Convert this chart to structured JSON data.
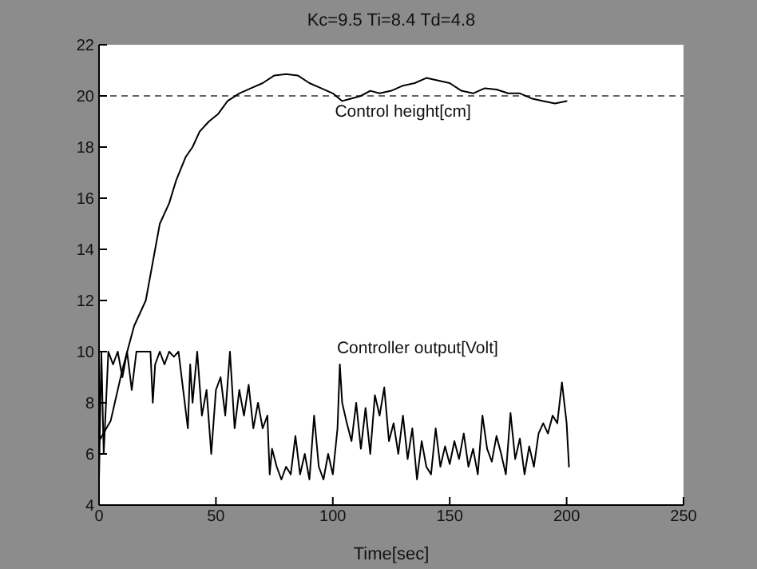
{
  "chart_data": {
    "type": "line",
    "title": "Kc=9.5   Ti=8.4   Td=4.8",
    "xlabel": "Time[sec]",
    "annotations": [
      "Control height[cm]",
      "Controller output[Volt]"
    ],
    "xlim": [
      0,
      250
    ],
    "xticks": [
      0,
      50,
      100,
      150,
      200,
      250
    ],
    "ylim": [
      4,
      22
    ],
    "yticks": [
      4,
      6,
      8,
      10,
      12,
      14,
      16,
      18,
      20,
      22
    ],
    "marker": "none",
    "line_style": "solid",
    "ref_lines": [
      {
        "axis": "y",
        "value": 20,
        "label": null,
        "color": "#333333",
        "line_style": "dashed"
      }
    ],
    "series": [
      {
        "color": "#000000",
        "x": [
          0,
          5,
          10,
          15,
          20,
          23,
          26,
          30,
          33,
          37,
          40,
          43,
          47,
          51,
          55,
          60,
          65,
          70,
          75,
          80,
          85,
          90,
          95,
          100,
          104,
          108,
          112,
          116,
          120,
          125,
          130,
          135,
          140,
          145,
          150,
          155,
          160,
          165,
          170,
          175,
          180,
          185,
          190,
          195,
          200
        ],
        "values": [
          6.5,
          7.3,
          9.3,
          11,
          12,
          13.5,
          15,
          15.8,
          16.7,
          17.6,
          18,
          18.6,
          19,
          19.3,
          19.8,
          20.1,
          20.3,
          20.5,
          20.8,
          20.85,
          20.8,
          20.5,
          20.3,
          20.1,
          19.8,
          19.9,
          20,
          20.2,
          20.1,
          20.2,
          20.4,
          20.5,
          20.7,
          20.6,
          20.5,
          20.2,
          20.1,
          20.3,
          20.25,
          20.1,
          20.1,
          19.9,
          19.8,
          19.7,
          19.8
        ]
      },
      {
        "color": "#000000",
        "x": [
          0,
          1,
          2,
          4,
          6,
          8,
          10,
          12,
          14,
          16,
          18,
          20,
          22,
          23,
          24,
          26,
          28,
          30,
          32,
          34,
          36,
          38,
          39,
          40,
          42,
          44,
          46,
          48,
          50,
          52,
          54,
          56,
          58,
          60,
          62,
          64,
          66,
          68,
          70,
          72,
          73,
          74,
          76,
          78,
          80,
          82,
          84,
          86,
          88,
          90,
          92,
          94,
          96,
          98,
          100,
          102,
          103,
          104,
          106,
          108,
          110,
          112,
          114,
          116,
          118,
          120,
          122,
          124,
          126,
          128,
          130,
          132,
          134,
          136,
          138,
          140,
          142,
          144,
          146,
          148,
          150,
          152,
          154,
          156,
          158,
          160,
          162,
          164,
          166,
          168,
          170,
          172,
          174,
          176,
          178,
          180,
          182,
          184,
          186,
          188,
          190,
          192,
          194,
          196,
          198,
          200,
          201
        ],
        "values": [
          5,
          10,
          6,
          10,
          9.5,
          10,
          9,
          10,
          8.5,
          10,
          10,
          10,
          10,
          8,
          9.5,
          10,
          9.5,
          10,
          9.8,
          10,
          8.5,
          7,
          9.5,
          8,
          10,
          7.5,
          8.5,
          6,
          8.5,
          9,
          7.5,
          10,
          7,
          8.5,
          7.5,
          8.7,
          7,
          8,
          7,
          7.5,
          5.2,
          6.2,
          5.5,
          5,
          5.5,
          5.2,
          6.7,
          5.2,
          6,
          5,
          7.5,
          5.5,
          5,
          6,
          5.2,
          7,
          9.5,
          8,
          7.2,
          6.5,
          8,
          6.2,
          7.8,
          6,
          8.3,
          7.5,
          8.6,
          6.5,
          7.2,
          6,
          7.5,
          5.8,
          7,
          5,
          6.5,
          5.5,
          5.2,
          7,
          5.5,
          6.3,
          5.6,
          6.5,
          5.8,
          6.8,
          5.5,
          6.2,
          5.2,
          7.5,
          6.2,
          5.7,
          6.7,
          6,
          5.2,
          7.6,
          5.8,
          6.6,
          5.2,
          6.3,
          5.5,
          6.8,
          7.2,
          6.8,
          7.5,
          7.2,
          8.8,
          7.2,
          5.5
        ]
      }
    ]
  }
}
